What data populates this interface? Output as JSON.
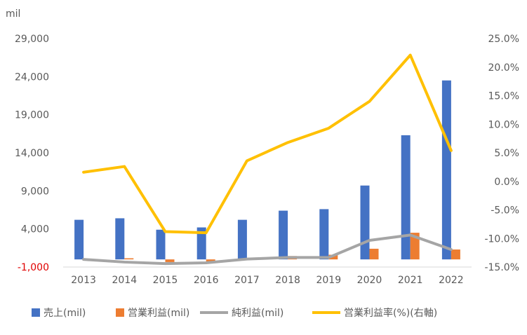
{
  "chart_data": {
    "type": "bar",
    "categories": [
      "2013",
      "2014",
      "2015",
      "2016",
      "2017",
      "2018",
      "2019",
      "2020",
      "2021",
      "2022"
    ],
    "y_unit_label": "mil",
    "left_axis": {
      "ylim": [
        -1000,
        29000
      ],
      "ticks": [
        -1000,
        4000,
        9000,
        14000,
        19000,
        24000,
        29000
      ],
      "tick_labels": [
        "-1,000",
        "4,000",
        "9,000",
        "14,000",
        "19,000",
        "24,000",
        "29,000"
      ]
    },
    "right_axis": {
      "ylim": [
        -15,
        25
      ],
      "ticks": [
        -15,
        -10,
        -5,
        0,
        5,
        10,
        15,
        20,
        25
      ],
      "tick_labels": [
        "-15.0%",
        "-10.0%",
        "-5.0%",
        "0.0%",
        "5.0%",
        "10.0%",
        "15.0%",
        "20.0%",
        "25.0%"
      ]
    },
    "series": [
      {
        "name": "売上(mil)",
        "kind": "bar",
        "axis": "left",
        "color": "#4472c4",
        "values": [
          5200,
          5400,
          3900,
          4200,
          5200,
          6400,
          6600,
          9700,
          16300,
          23500
        ]
      },
      {
        "name": "営業利益(mil)",
        "kind": "bar",
        "axis": "left",
        "color": "#ed7d31",
        "values": [
          40,
          150,
          -350,
          -350,
          190,
          440,
          610,
          1400,
          3500,
          1300
        ]
      },
      {
        "name": "純利益(mil)",
        "kind": "line",
        "axis": "left",
        "color": "#a5a5a5",
        "values": [
          0,
          -350,
          -550,
          -450,
          50,
          250,
          250,
          2500,
          3200,
          1300
        ]
      },
      {
        "name": "営業利益率(%)(右軸)",
        "kind": "line",
        "axis": "right",
        "color": "#ffc000",
        "values": [
          1.6,
          2.6,
          -8.8,
          -9.0,
          3.6,
          6.8,
          9.3,
          14.0,
          22.1,
          5.4
        ]
      }
    ],
    "grid": false,
    "legend": "bottom"
  }
}
